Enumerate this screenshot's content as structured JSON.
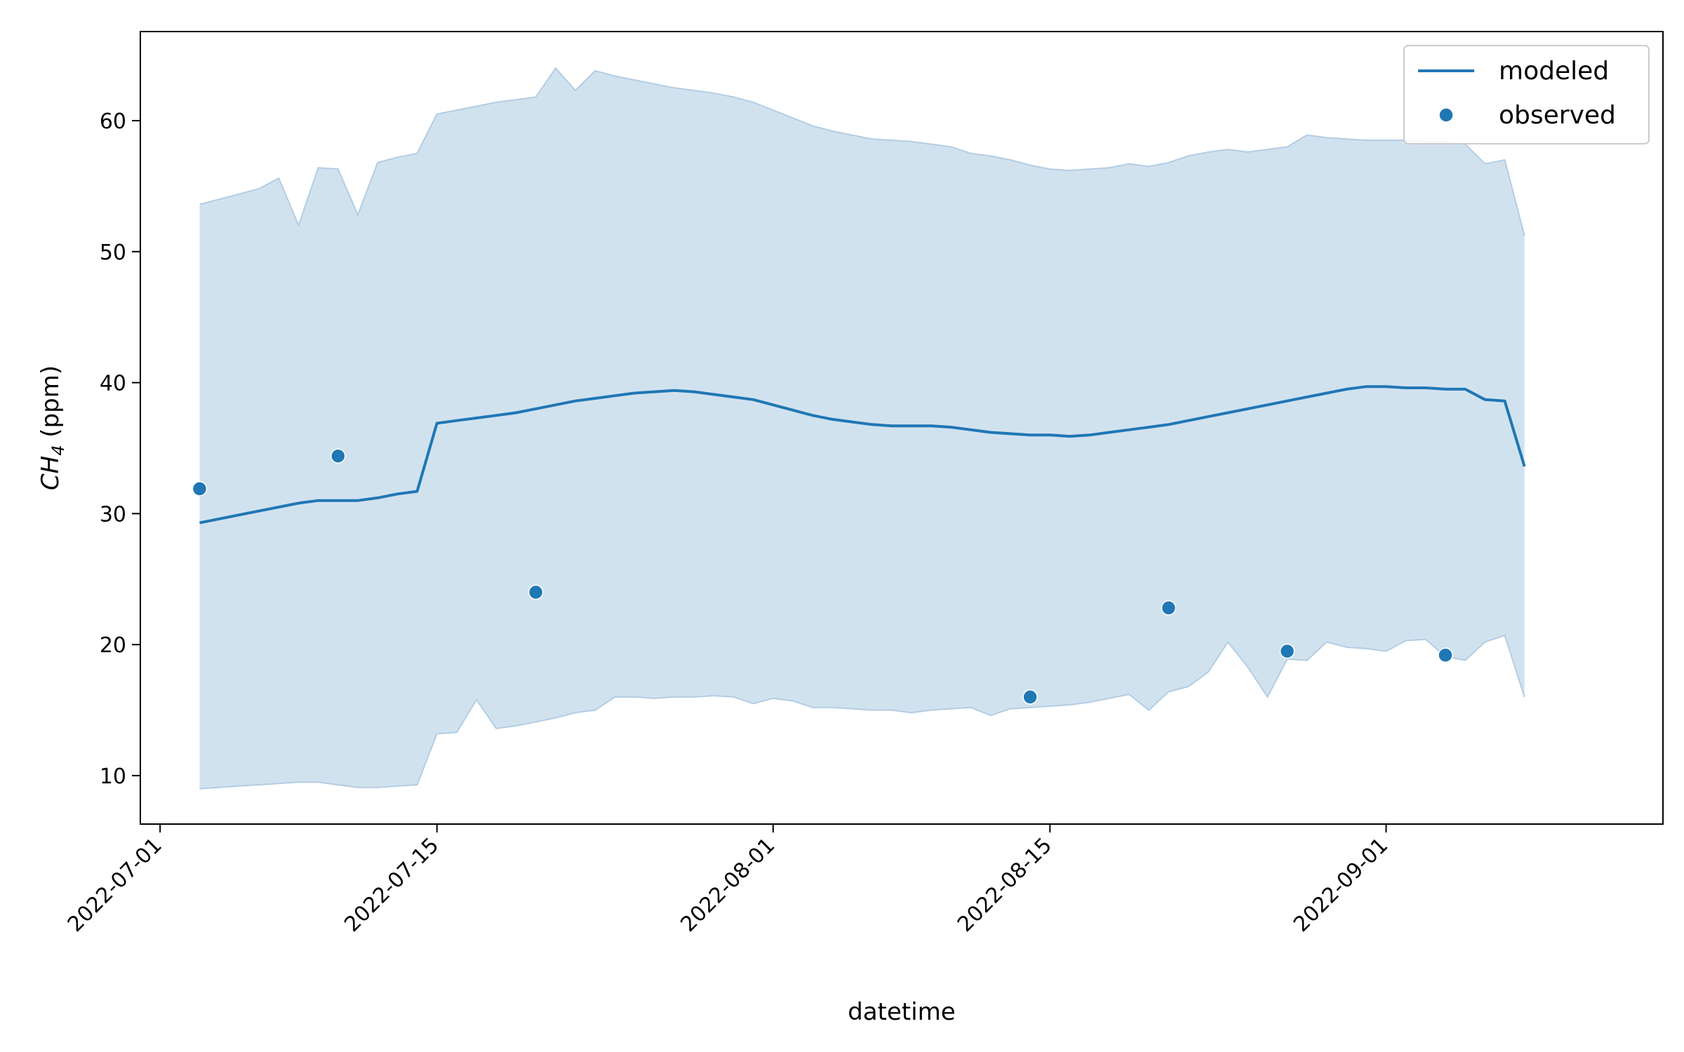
{
  "chart_data": {
    "type": "line",
    "xlabel": "datetime",
    "ylabel": {
      "base": "CH",
      "sub": "4",
      "unit": " (ppm)"
    },
    "xlim": [
      "2022-06-30",
      "2022-09-15"
    ],
    "ylim": [
      6.3,
      66.8
    ],
    "x_ticks": [
      "2022-07-01",
      "2022-07-15",
      "2022-08-01",
      "2022-08-15",
      "2022-09-01"
    ],
    "y_ticks": [
      10,
      20,
      30,
      40,
      50,
      60
    ],
    "legend": {
      "position": "top-right",
      "entries": [
        "modeled",
        "observed"
      ]
    },
    "colors": {
      "line": "#1f77b4",
      "band": "#d1e2ef",
      "band_edge": "#b3cde3",
      "marker": "#1f77b4"
    },
    "grid": false,
    "series": [
      {
        "name": "modeled",
        "type": "line",
        "x": [
          "2022-07-03",
          "2022-07-04",
          "2022-07-05",
          "2022-07-06",
          "2022-07-07",
          "2022-07-08",
          "2022-07-09",
          "2022-07-10",
          "2022-07-11",
          "2022-07-12",
          "2022-07-13",
          "2022-07-14",
          "2022-07-15",
          "2022-07-16",
          "2022-07-17",
          "2022-07-18",
          "2022-07-19",
          "2022-07-20",
          "2022-07-21",
          "2022-07-22",
          "2022-07-23",
          "2022-07-24",
          "2022-07-25",
          "2022-07-26",
          "2022-07-27",
          "2022-07-28",
          "2022-07-29",
          "2022-07-30",
          "2022-07-31",
          "2022-08-01",
          "2022-08-02",
          "2022-08-03",
          "2022-08-04",
          "2022-08-05",
          "2022-08-06",
          "2022-08-07",
          "2022-08-08",
          "2022-08-09",
          "2022-08-10",
          "2022-08-11",
          "2022-08-12",
          "2022-08-13",
          "2022-08-14",
          "2022-08-15",
          "2022-08-16",
          "2022-08-17",
          "2022-08-18",
          "2022-08-19",
          "2022-08-20",
          "2022-08-21",
          "2022-08-22",
          "2022-08-23",
          "2022-08-24",
          "2022-08-25",
          "2022-08-26",
          "2022-08-27",
          "2022-08-28",
          "2022-08-29",
          "2022-08-30",
          "2022-08-31",
          "2022-09-01",
          "2022-09-02",
          "2022-09-03",
          "2022-09-04",
          "2022-09-05",
          "2022-09-06",
          "2022-09-07",
          "2022-09-08"
        ],
        "y": [
          29.3,
          29.6,
          29.9,
          30.2,
          30.5,
          30.8,
          31.0,
          31.0,
          31.0,
          31.2,
          31.5,
          31.7,
          36.9,
          37.1,
          37.3,
          37.5,
          37.7,
          38.0,
          38.3,
          38.6,
          38.8,
          39.0,
          39.2,
          39.3,
          39.4,
          39.3,
          39.1,
          38.9,
          38.7,
          38.3,
          37.9,
          37.5,
          37.2,
          37.0,
          36.8,
          36.7,
          36.7,
          36.7,
          36.6,
          36.4,
          36.2,
          36.1,
          36.0,
          36.0,
          35.9,
          36.0,
          36.2,
          36.4,
          36.6,
          36.8,
          37.1,
          37.4,
          37.7,
          38.0,
          38.3,
          38.6,
          38.9,
          39.2,
          39.5,
          39.7,
          39.7,
          39.6,
          39.6,
          39.5,
          39.5,
          38.7,
          38.6,
          33.6
        ]
      },
      {
        "name": "modeled_upper",
        "type": "band-upper",
        "x": [
          "2022-07-03",
          "2022-07-04",
          "2022-07-05",
          "2022-07-06",
          "2022-07-07",
          "2022-07-08",
          "2022-07-09",
          "2022-07-10",
          "2022-07-11",
          "2022-07-12",
          "2022-07-13",
          "2022-07-14",
          "2022-07-15",
          "2022-07-16",
          "2022-07-17",
          "2022-07-18",
          "2022-07-19",
          "2022-07-20",
          "2022-07-21",
          "2022-07-22",
          "2022-07-23",
          "2022-07-24",
          "2022-07-25",
          "2022-07-26",
          "2022-07-27",
          "2022-07-28",
          "2022-07-29",
          "2022-07-30",
          "2022-07-31",
          "2022-08-01",
          "2022-08-02",
          "2022-08-03",
          "2022-08-04",
          "2022-08-05",
          "2022-08-06",
          "2022-08-07",
          "2022-08-08",
          "2022-08-09",
          "2022-08-10",
          "2022-08-11",
          "2022-08-12",
          "2022-08-13",
          "2022-08-14",
          "2022-08-15",
          "2022-08-16",
          "2022-08-17",
          "2022-08-18",
          "2022-08-19",
          "2022-08-20",
          "2022-08-21",
          "2022-08-22",
          "2022-08-23",
          "2022-08-24",
          "2022-08-25",
          "2022-08-26",
          "2022-08-27",
          "2022-08-28",
          "2022-08-29",
          "2022-08-30",
          "2022-08-31",
          "2022-09-01",
          "2022-09-02",
          "2022-09-03",
          "2022-09-04",
          "2022-09-05",
          "2022-09-06",
          "2022-09-07",
          "2022-09-08"
        ],
        "y": [
          53.6,
          54.0,
          54.4,
          54.8,
          55.6,
          52.0,
          56.4,
          56.3,
          52.8,
          56.8,
          57.2,
          57.5,
          60.5,
          60.8,
          61.1,
          61.4,
          61.6,
          61.8,
          64.0,
          62.3,
          63.8,
          63.4,
          63.1,
          62.8,
          62.5,
          62.3,
          62.1,
          61.8,
          61.4,
          60.8,
          60.2,
          59.6,
          59.2,
          58.9,
          58.6,
          58.5,
          58.4,
          58.2,
          58.0,
          57.5,
          57.3,
          57.0,
          56.6,
          56.3,
          56.2,
          56.3,
          56.4,
          56.7,
          56.5,
          56.8,
          57.3,
          57.6,
          57.8,
          57.6,
          57.8,
          58.0,
          58.9,
          58.7,
          58.6,
          58.5,
          58.5,
          58.5,
          58.4,
          58.4,
          58.2,
          56.7,
          57.0,
          51.2
        ]
      },
      {
        "name": "modeled_lower",
        "type": "band-lower",
        "x": [
          "2022-07-03",
          "2022-07-04",
          "2022-07-05",
          "2022-07-06",
          "2022-07-07",
          "2022-07-08",
          "2022-07-09",
          "2022-07-10",
          "2022-07-11",
          "2022-07-12",
          "2022-07-13",
          "2022-07-14",
          "2022-07-15",
          "2022-07-16",
          "2022-07-17",
          "2022-07-18",
          "2022-07-19",
          "2022-07-20",
          "2022-07-21",
          "2022-07-22",
          "2022-07-23",
          "2022-07-24",
          "2022-07-25",
          "2022-07-26",
          "2022-07-27",
          "2022-07-28",
          "2022-07-29",
          "2022-07-30",
          "2022-07-31",
          "2022-08-01",
          "2022-08-02",
          "2022-08-03",
          "2022-08-04",
          "2022-08-05",
          "2022-08-06",
          "2022-08-07",
          "2022-08-08",
          "2022-08-09",
          "2022-08-10",
          "2022-08-11",
          "2022-08-12",
          "2022-08-13",
          "2022-08-14",
          "2022-08-15",
          "2022-08-16",
          "2022-08-17",
          "2022-08-18",
          "2022-08-19",
          "2022-08-20",
          "2022-08-21",
          "2022-08-22",
          "2022-08-23",
          "2022-08-24",
          "2022-08-25",
          "2022-08-26",
          "2022-08-27",
          "2022-08-28",
          "2022-08-29",
          "2022-08-30",
          "2022-08-31",
          "2022-09-01",
          "2022-09-02",
          "2022-09-03",
          "2022-09-04",
          "2022-09-05",
          "2022-09-06",
          "2022-09-07",
          "2022-09-08"
        ],
        "y": [
          9.0,
          9.1,
          9.2,
          9.3,
          9.4,
          9.5,
          9.5,
          9.3,
          9.1,
          9.1,
          9.2,
          9.3,
          13.2,
          13.3,
          15.8,
          13.6,
          13.8,
          14.1,
          14.4,
          14.8,
          15.0,
          16.0,
          16.0,
          15.9,
          16.0,
          16.0,
          16.1,
          16.0,
          15.5,
          15.9,
          15.7,
          15.2,
          15.2,
          15.1,
          15.0,
          15.0,
          14.8,
          15.0,
          15.1,
          15.2,
          14.6,
          15.1,
          15.2,
          15.3,
          15.4,
          15.6,
          15.9,
          16.2,
          15.0,
          16.4,
          16.8,
          17.9,
          20.2,
          18.3,
          16.0,
          18.9,
          18.8,
          20.2,
          19.8,
          19.7,
          19.5,
          20.3,
          20.4,
          19.1,
          18.8,
          20.2,
          20.7,
          16.0
        ]
      },
      {
        "name": "observed",
        "type": "scatter",
        "x": [
          "2022-07-03",
          "2022-07-10",
          "2022-07-20",
          "2022-08-14",
          "2022-08-21",
          "2022-08-27",
          "2022-09-04"
        ],
        "y": [
          31.9,
          34.4,
          24.0,
          16.0,
          22.8,
          19.5,
          19.2
        ]
      }
    ]
  }
}
